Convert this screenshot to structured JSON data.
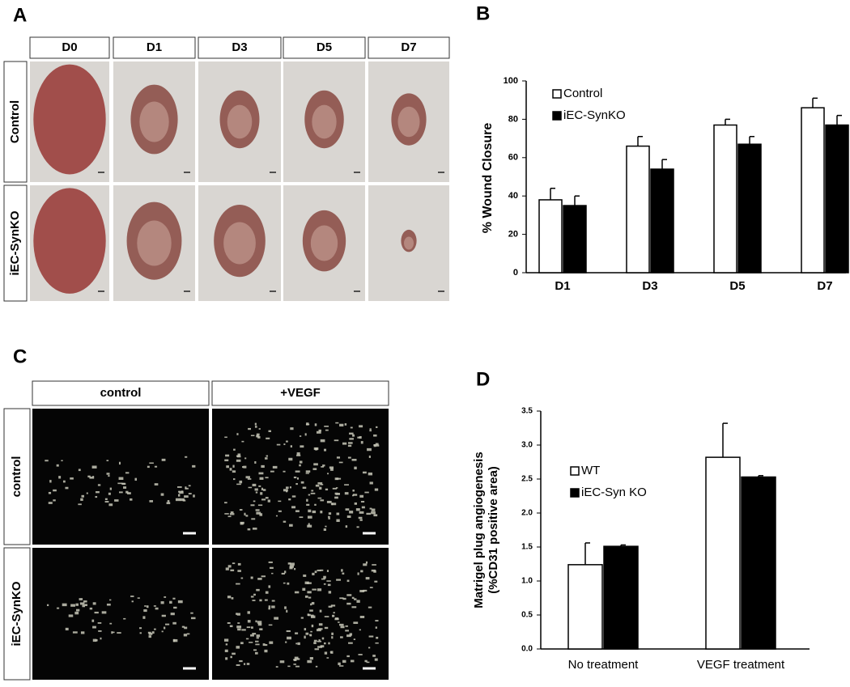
{
  "panels": {
    "A": {
      "label": "A",
      "columns": [
        "D0",
        "D1",
        "D3",
        "D5",
        "D7"
      ],
      "rows": [
        "Control",
        "iEC-SynKO"
      ]
    },
    "C": {
      "label": "C",
      "columns": [
        "control",
        "+VEGF"
      ],
      "rows": [
        "control",
        "iEC-SynKO"
      ]
    }
  },
  "chart_data": [
    {
      "type": "bar",
      "panel_label": "B",
      "ylabel": "% Wound Closure",
      "categories": [
        "D1",
        "D3",
        "D5",
        "D7"
      ],
      "series": [
        {
          "name": "Control",
          "color": "#ffffff",
          "values": [
            38,
            66,
            77,
            86
          ],
          "errors": [
            6,
            5,
            3,
            5
          ]
        },
        {
          "name": "iEC-SynKO",
          "color": "#000000",
          "values": [
            35,
            54,
            67,
            77
          ],
          "errors": [
            5,
            5,
            4,
            5
          ]
        }
      ],
      "ylim": [
        0,
        100
      ],
      "yticks": [
        0,
        20,
        40,
        60,
        80,
        100
      ]
    },
    {
      "type": "bar",
      "panel_label": "D",
      "ylabel": [
        "Matrigel plug angiogenesis",
        "(%CD31 positive area)"
      ],
      "categories": [
        "No treatment",
        "VEGF treatment"
      ],
      "series": [
        {
          "name": "WT",
          "color": "#ffffff",
          "values": [
            1.24,
            2.82
          ],
          "errors": [
            0.32,
            0.5
          ]
        },
        {
          "name": "iEC-Syn KO",
          "color": "#000000",
          "values": [
            1.51,
            2.53
          ],
          "errors": [
            0.02,
            0.02
          ]
        }
      ],
      "ylim": [
        0,
        3.5
      ],
      "yticks": [
        {
          "value": 0,
          "label": "0.0"
        },
        0.5,
        {
          "value": 1,
          "label": "1.0"
        },
        1.5,
        {
          "value": 2,
          "label": "2.0"
        },
        2.5,
        {
          "value": 3,
          "label": "3.0"
        },
        3.5
      ]
    }
  ]
}
